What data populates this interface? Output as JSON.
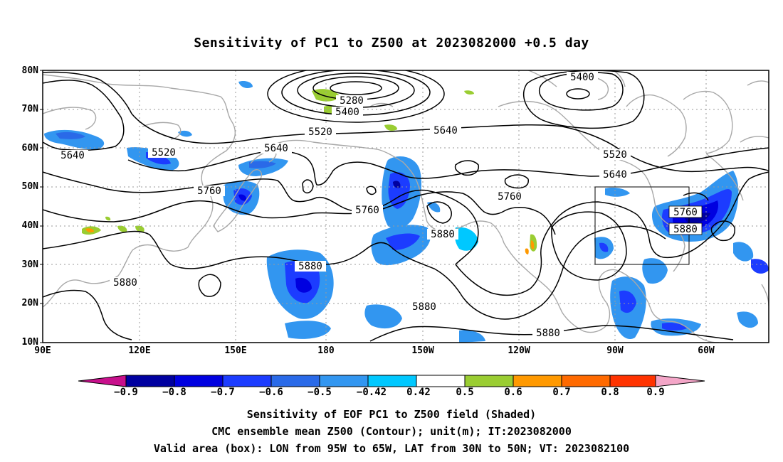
{
  "title": "Sensitivity of PC1 to Z500 at 2023082000 +0.5 day",
  "lat_ticks": [
    "80N",
    "70N",
    "60N",
    "50N",
    "40N",
    "30N",
    "20N",
    "10N"
  ],
  "lon_ticks": [
    "90E",
    "120E",
    "150E",
    "180",
    "150W",
    "120W",
    "90W",
    "60W"
  ],
  "contour_labels": [
    "5280",
    "5400",
    "5400",
    "5520",
    "5640",
    "5640",
    "5520",
    "5640",
    "5520",
    "5760",
    "5640",
    "5760",
    "5760",
    "5880",
    "5880",
    "5760",
    "5880",
    "5880",
    "5880",
    "5880"
  ],
  "colorbar": {
    "labels": [
      "-0.9",
      "-0.8",
      "-0.7",
      "-0.6",
      "-0.5",
      "-0.42",
      "0.42",
      "0.5",
      "0.6",
      "0.7",
      "0.8",
      "0.9"
    ],
    "colors": [
      "#0000a0",
      "#0000e0",
      "#1c3cff",
      "#2a6ae8",
      "#3296f0",
      "#00c8ff",
      "#ffffff",
      "#9acd32",
      "#ff9900",
      "#ff6a00",
      "#ff3300",
      "#ff0000"
    ],
    "low_end_color": "#c8108c",
    "high_end_color": "#f4a6c8"
  },
  "valid_area": {
    "lon_from": "95W",
    "lon_to": "65W",
    "lat_from": "30N",
    "lat_to": "50N"
  },
  "footer": {
    "line1": "Sensitivity of EOF PC1 to Z500 field (Shaded)",
    "line2": "CMC ensemble mean Z500 (Contour); unit(m); IT:2023082000",
    "line3": "Valid area (box): LON from 95W to 65W, LAT from 30N to 50N; VT: 2023082100"
  }
}
